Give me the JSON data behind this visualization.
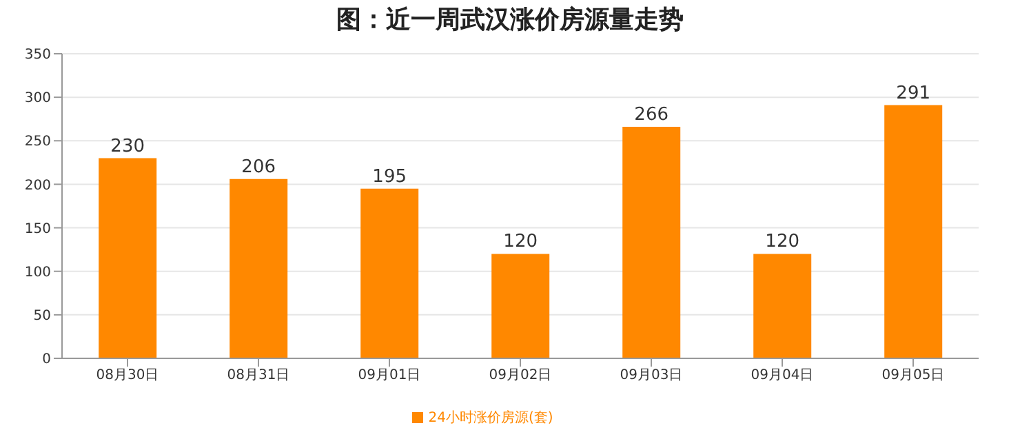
{
  "chart_data": {
    "type": "bar",
    "title": "图：近一周武汉涨价房源量走势",
    "categories": [
      "08月30日",
      "08月31日",
      "09月01日",
      "09月02日",
      "09月03日",
      "09月04日",
      "09月05日"
    ],
    "series": [
      {
        "name": "24小时涨价房源(套)",
        "color": "#ff8800",
        "values": [
          230,
          206,
          195,
          120,
          266,
          120,
          291
        ]
      }
    ],
    "ylim": [
      0,
      350
    ],
    "yticks": [
      0,
      50,
      100,
      150,
      200,
      250,
      300,
      350
    ],
    "grid": "y",
    "legend": "bottom",
    "data_labels": true
  }
}
